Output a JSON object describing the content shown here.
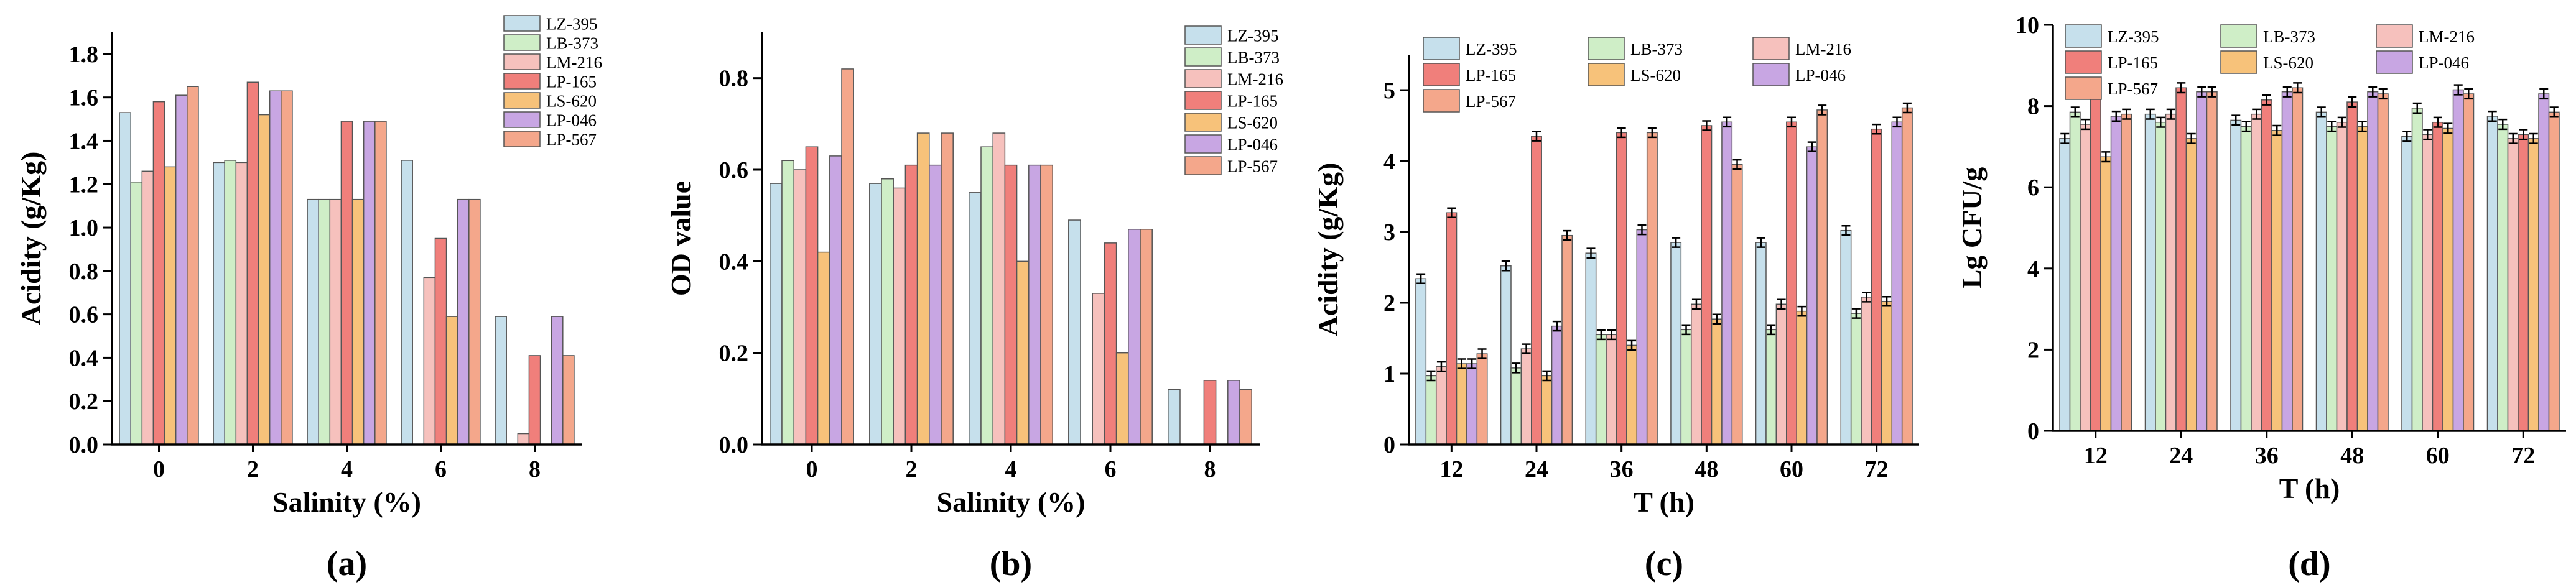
{
  "colors": {
    "LZ-395": "#c6e0ec",
    "LB-373": "#cfeec7",
    "LM-216": "#f6c1bd",
    "LP-165": "#f07f7b",
    "LS-620": "#f7c27a",
    "LP-046": "#c8a6e3",
    "LP-567": "#f4a78b"
  },
  "chart_data": [
    {
      "panel": "(a)",
      "type": "bar",
      "xlabel": "Salinity (%)",
      "ylabel": "Acidity (g/Kg)",
      "ylim": [
        0,
        1.9
      ],
      "yticks": [
        "0.0",
        "0.2",
        "0.4",
        "0.6",
        "0.8",
        "1.0",
        "1.2",
        "1.4",
        "1.6",
        "1.8"
      ],
      "categories": [
        "0",
        "2",
        "4",
        "6",
        "8"
      ],
      "error_bars": false,
      "series": [
        {
          "name": "LZ-395",
          "values": [
            1.53,
            1.3,
            1.13,
            1.31,
            0.59
          ]
        },
        {
          "name": "LB-373",
          "values": [
            1.21,
            1.31,
            1.13,
            0,
            0
          ]
        },
        {
          "name": "LM-216",
          "values": [
            1.26,
            1.3,
            1.13,
            0.77,
            0.05
          ]
        },
        {
          "name": "LP-165",
          "values": [
            1.58,
            1.67,
            1.49,
            0.95,
            0.41
          ]
        },
        {
          "name": "LS-620",
          "values": [
            1.28,
            1.52,
            1.13,
            0.59,
            0
          ]
        },
        {
          "name": "LP-046",
          "values": [
            1.61,
            1.63,
            1.49,
            1.13,
            0.59
          ]
        },
        {
          "name": "LP-567",
          "values": [
            1.65,
            1.63,
            1.49,
            1.13,
            0.41
          ]
        }
      ]
    },
    {
      "panel": "(b)",
      "type": "bar",
      "xlabel": "Salinity (%)",
      "ylabel": "OD value",
      "ylim": [
        0,
        0.9
      ],
      "yticks": [
        "0.0",
        "0.2",
        "0.4",
        "0.6",
        "0.8"
      ],
      "categories": [
        "0",
        "2",
        "4",
        "6",
        "8"
      ],
      "error_bars": false,
      "series": [
        {
          "name": "LZ-395",
          "values": [
            0.57,
            0.57,
            0.55,
            0.49,
            0.12
          ]
        },
        {
          "name": "LB-373",
          "values": [
            0.62,
            0.58,
            0.65,
            0,
            0
          ]
        },
        {
          "name": "LM-216",
          "values": [
            0.6,
            0.56,
            0.68,
            0.33,
            0
          ]
        },
        {
          "name": "LP-165",
          "values": [
            0.65,
            0.61,
            0.61,
            0.44,
            0.14
          ]
        },
        {
          "name": "LS-620",
          "values": [
            0.42,
            0.68,
            0.4,
            0.2,
            0
          ]
        },
        {
          "name": "LP-046",
          "values": [
            0.63,
            0.61,
            0.61,
            0.47,
            0.14
          ]
        },
        {
          "name": "LP-567",
          "values": [
            0.82,
            0.68,
            0.61,
            0.47,
            0.12
          ]
        }
      ]
    },
    {
      "panel": "(c)",
      "type": "bar",
      "xlabel": "T (h)",
      "ylabel": "Acidity (g/Kg)",
      "ylim": [
        0,
        5.5
      ],
      "yticks": [
        "0",
        "1",
        "2",
        "3",
        "4",
        "5"
      ],
      "categories": [
        "12",
        "24",
        "36",
        "48",
        "60",
        "72"
      ],
      "error_bars": true,
      "series": [
        {
          "name": "LZ-395",
          "values": [
            2.34,
            2.52,
            2.7,
            2.85,
            2.85,
            3.02
          ]
        },
        {
          "name": "LB-373",
          "values": [
            0.97,
            1.08,
            1.55,
            1.62,
            1.62,
            1.85
          ]
        },
        {
          "name": "LM-216",
          "values": [
            1.1,
            1.35,
            1.55,
            1.98,
            1.98,
            2.08
          ]
        },
        {
          "name": "LP-165",
          "values": [
            3.27,
            4.35,
            4.4,
            4.5,
            4.55,
            4.45
          ]
        },
        {
          "name": "LS-620",
          "values": [
            1.14,
            0.97,
            1.4,
            1.77,
            1.88,
            2.02
          ]
        },
        {
          "name": "LP-046",
          "values": [
            1.14,
            1.67,
            3.03,
            4.55,
            4.2,
            4.55
          ]
        },
        {
          "name": "LP-567",
          "values": [
            1.28,
            2.95,
            4.4,
            3.95,
            4.72,
            4.75
          ]
        }
      ]
    },
    {
      "panel": "(d)",
      "type": "bar",
      "xlabel": "T (h)",
      "ylabel": "Lg CFU/g",
      "ylim": [
        0,
        10
      ],
      "yticks": [
        "0",
        "2",
        "4",
        "6",
        "8",
        "10"
      ],
      "categories": [
        "12",
        "24",
        "36",
        "48",
        "60",
        "72"
      ],
      "error_bars": true,
      "series": [
        {
          "name": "LZ-395",
          "values": [
            7.2,
            7.8,
            7.65,
            7.85,
            7.25,
            7.75
          ]
        },
        {
          "name": "LB-373",
          "values": [
            7.85,
            7.6,
            7.5,
            7.5,
            7.95,
            7.55
          ]
        },
        {
          "name": "LM-216",
          "values": [
            7.55,
            7.8,
            7.8,
            7.6,
            7.3,
            7.2
          ]
        },
        {
          "name": "LP-165",
          "values": [
            8.45,
            8.45,
            8.15,
            8.1,
            7.6,
            7.3
          ]
        },
        {
          "name": "LS-620",
          "values": [
            6.75,
            7.2,
            7.4,
            7.5,
            7.45,
            7.2
          ]
        },
        {
          "name": "LP-046",
          "values": [
            7.75,
            8.35,
            8.35,
            8.35,
            8.4,
            8.3
          ]
        },
        {
          "name": "LP-567",
          "values": [
            7.8,
            8.35,
            8.45,
            8.3,
            8.3,
            7.85
          ]
        }
      ]
    }
  ]
}
